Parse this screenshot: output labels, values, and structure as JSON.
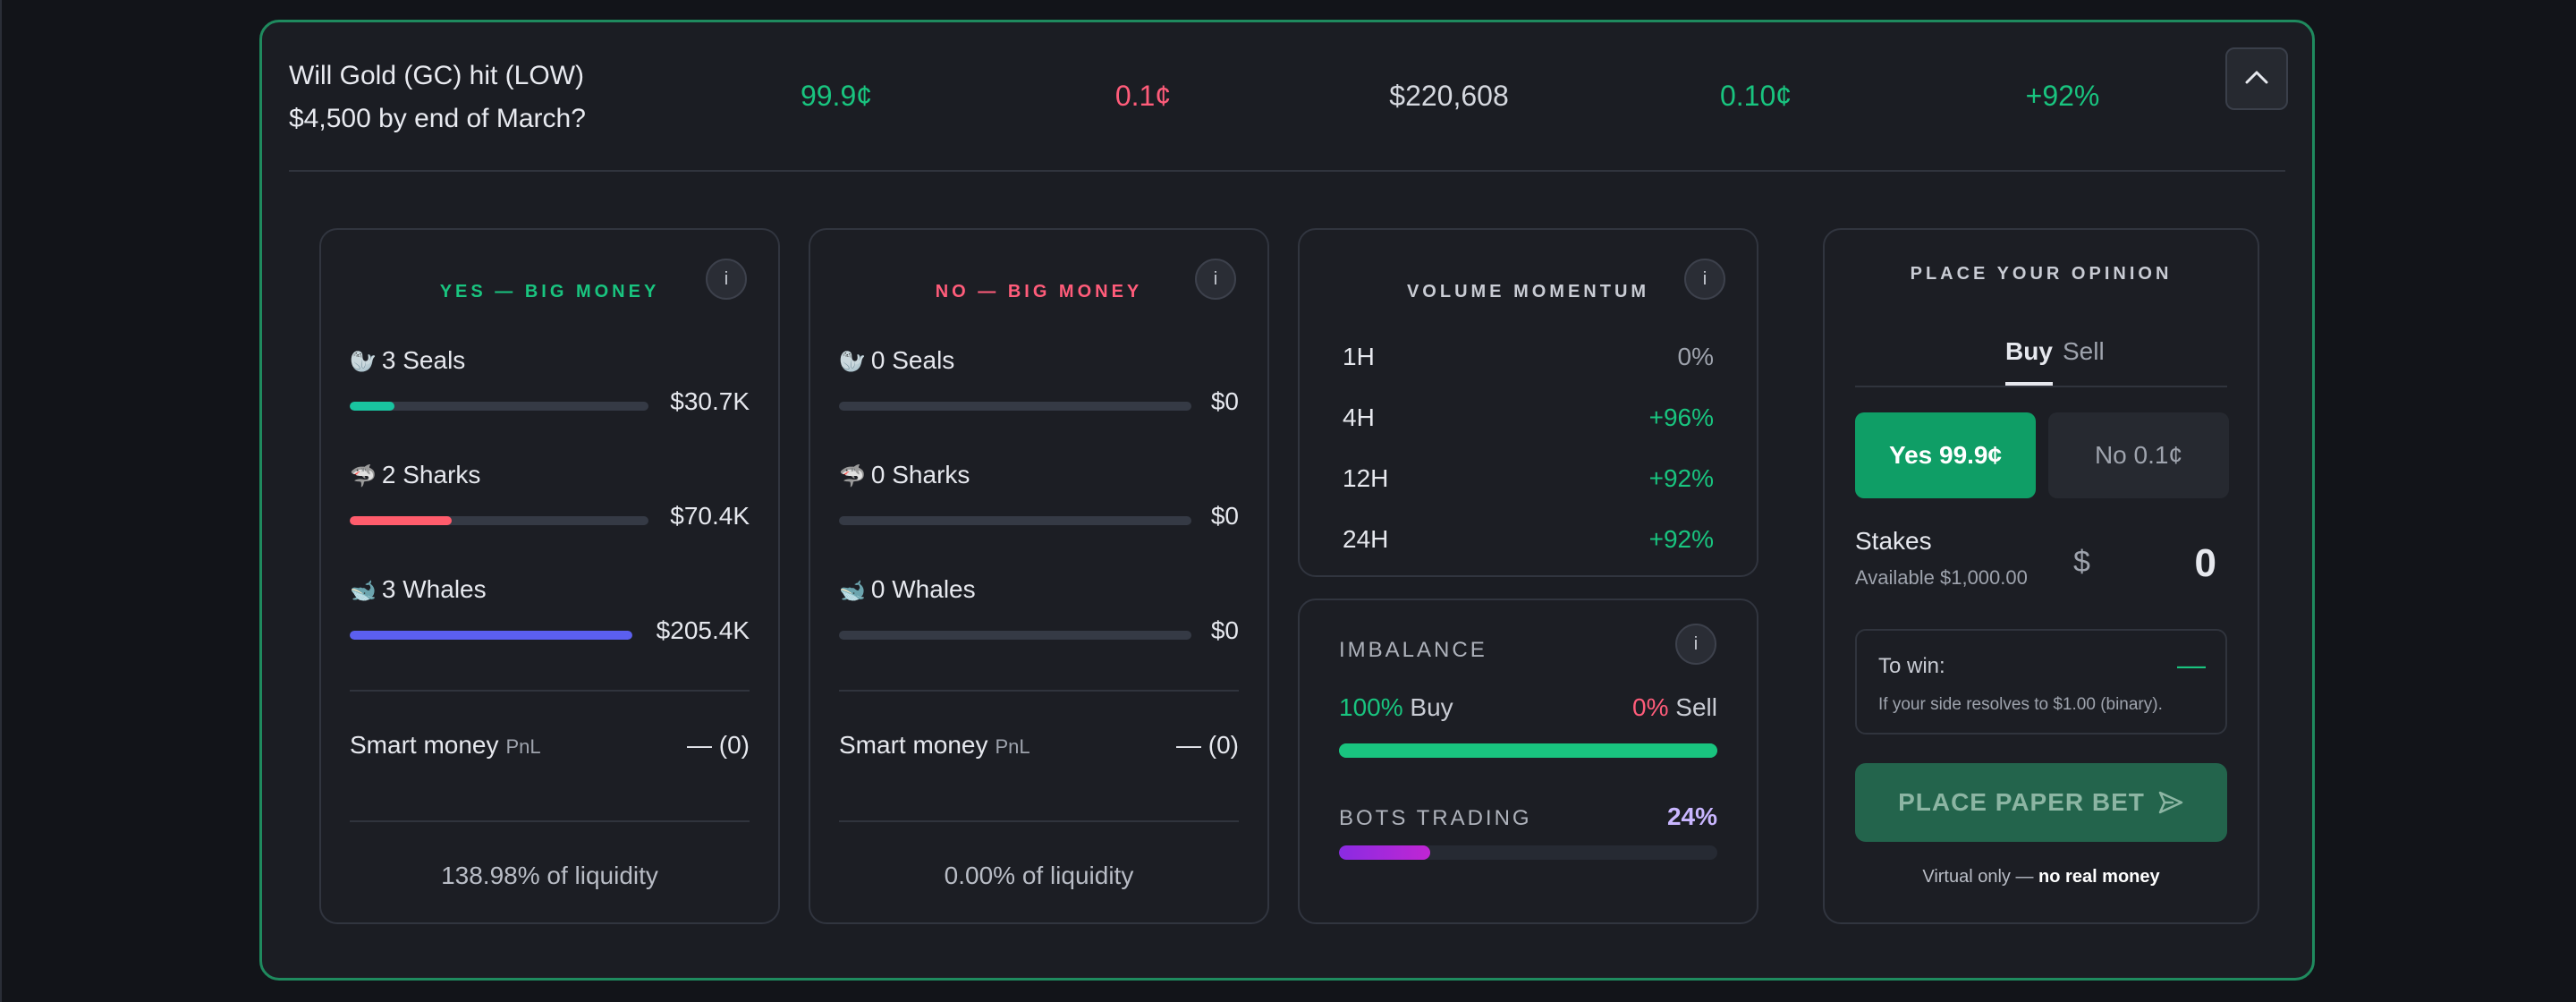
{
  "market": {
    "title": "Will Gold (GC) hit (LOW) $4,500 by end of March?",
    "yes_price": "99.9¢",
    "no_price": "0.1¢",
    "volume": "$220,608",
    "spread": "0.10¢",
    "change": "+92%"
  },
  "icons": {
    "collapse": "chevron-up-icon",
    "info": "info-icon",
    "send": "send-icon",
    "seal": "seal-icon",
    "shark": "shark-icon",
    "whale": "whale-icon"
  },
  "yes_panel": {
    "title": "YES — BIG MONEY",
    "info": "i",
    "tiers": [
      {
        "emoji": "🦭",
        "label": "3 Seals",
        "value": "$30.7K",
        "fill": 0.15,
        "color": "#19c4a0"
      },
      {
        "emoji": "🦈",
        "label": "2 Sharks",
        "value": "$70.4K",
        "fill": 0.34,
        "color": "#ff5c6c"
      },
      {
        "emoji": "🐋",
        "label": "3 Whales",
        "value": "$205.4K",
        "fill": 1.0,
        "color": "#5b5ff0"
      }
    ],
    "smart_money_label": "Smart money",
    "pnl_label": "PnL",
    "smart_money_value": "— (0)",
    "liquidity": "138.98% of liquidity"
  },
  "no_panel": {
    "title": "NO — BIG MONEY",
    "info": "i",
    "tiers": [
      {
        "emoji": "🦭",
        "label": "0 Seals",
        "value": "$0",
        "fill": 0,
        "color": "#19c4a0"
      },
      {
        "emoji": "🦈",
        "label": "0 Sharks",
        "value": "$0",
        "fill": 0,
        "color": "#ff5c6c"
      },
      {
        "emoji": "🐋",
        "label": "0 Whales",
        "value": "$0",
        "fill": 0,
        "color": "#5b5ff0"
      }
    ],
    "smart_money_label": "Smart money",
    "pnl_label": "PnL",
    "smart_money_value": "— (0)",
    "liquidity": "0.00% of liquidity"
  },
  "volume_momentum": {
    "title": "VOLUME MOMENTUM",
    "info": "i",
    "rows": [
      {
        "period": "1H",
        "value": "0%"
      },
      {
        "period": "4H",
        "value": "+96%"
      },
      {
        "period": "12H",
        "value": "+92%"
      },
      {
        "period": "24H",
        "value": "+92%"
      }
    ]
  },
  "imbalance": {
    "title": "IMBALANCE",
    "info": "i",
    "buy_pct": "100%",
    "buy_label": "Buy",
    "sell_pct": "0%",
    "sell_label": "Sell",
    "buy_fraction": 1.0,
    "bots_title": "BOTS TRADING",
    "bots_pct": "24%",
    "bots_fraction": 0.24
  },
  "opinion": {
    "title": "PLACE YOUR OPINION",
    "tab_buy": "Buy",
    "tab_sell": "Sell",
    "yes_button": "Yes 99.9¢",
    "no_button": "No 0.1¢",
    "stakes_label": "Stakes",
    "available": "Available $1,000.00",
    "currency_symbol": "$",
    "stake_value": "0",
    "to_win_label": "To win:",
    "to_win_value": "—",
    "to_win_note": "If your side resolves to $1.00 (binary).",
    "place_button": "PLACE PAPER BET",
    "virtual_prefix": "Virtual only —",
    "virtual_bold": "no real money"
  }
}
